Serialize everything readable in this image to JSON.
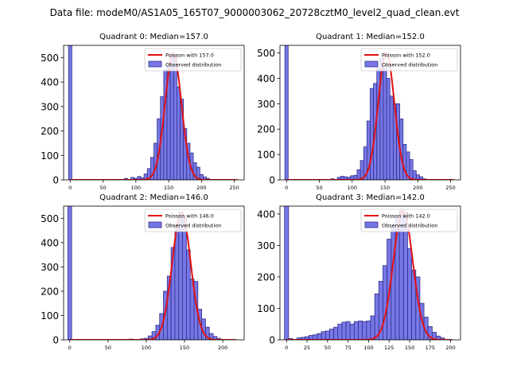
{
  "figure_title": "Data file: modeM0/AS1A05_165T07_9000003062_20728cztM0_level2_quad_clean.evt",
  "colors": {
    "bar_fill": "#7777e6",
    "bar_edge": "#2f2f8a",
    "fit_line": "#e41010",
    "axis": "#000000"
  },
  "chart_data": [
    {
      "type": "bar",
      "title": "Quadrant 0: Median=157.0",
      "legend": [
        "Poisson with 157.0",
        "Observed distribution"
      ],
      "legend_position": "top-right",
      "xlim": [
        -10,
        265
      ],
      "ylim": [
        0,
        550
      ],
      "xticks": [
        0,
        50,
        100,
        150,
        200,
        250
      ],
      "yticks": [
        0,
        100,
        200,
        300,
        400,
        500
      ],
      "bin_width": 5,
      "mean": 157.0,
      "fit_peak": 515,
      "bins": [
        {
          "x": 0,
          "count": 550
        },
        {
          "x": 85,
          "count": 6
        },
        {
          "x": 95,
          "count": 10
        },
        {
          "x": 100,
          "count": 6
        },
        {
          "x": 105,
          "count": 14
        },
        {
          "x": 110,
          "count": 8
        },
        {
          "x": 115,
          "count": 24
        },
        {
          "x": 120,
          "count": 46
        },
        {
          "x": 125,
          "count": 92
        },
        {
          "x": 130,
          "count": 150
        },
        {
          "x": 135,
          "count": 250
        },
        {
          "x": 140,
          "count": 340
        },
        {
          "x": 145,
          "count": 450
        },
        {
          "x": 150,
          "count": 470
        },
        {
          "x": 155,
          "count": 510
        },
        {
          "x": 160,
          "count": 500
        },
        {
          "x": 165,
          "count": 380
        },
        {
          "x": 170,
          "count": 330
        },
        {
          "x": 175,
          "count": 210
        },
        {
          "x": 180,
          "count": 150
        },
        {
          "x": 185,
          "count": 110
        },
        {
          "x": 190,
          "count": 70
        },
        {
          "x": 195,
          "count": 52
        },
        {
          "x": 200,
          "count": 22
        },
        {
          "x": 205,
          "count": 12
        },
        {
          "x": 210,
          "count": 5
        }
      ]
    },
    {
      "type": "bar",
      "title": "Quadrant 1: Median=152.0",
      "legend": [
        "Poisson with 152.0",
        "Observed distribution"
      ],
      "legend_position": "top-right",
      "xlim": [
        -10,
        265
      ],
      "ylim": [
        0,
        530
      ],
      "xticks": [
        0,
        50,
        100,
        150,
        200,
        250
      ],
      "yticks": [
        0,
        100,
        200,
        300,
        400,
        500
      ],
      "bin_width": 5,
      "mean": 152.0,
      "fit_peak": 500,
      "bins": [
        {
          "x": 0,
          "count": 530
        },
        {
          "x": 70,
          "count": 4
        },
        {
          "x": 80,
          "count": 10
        },
        {
          "x": 85,
          "count": 14
        },
        {
          "x": 90,
          "count": 12
        },
        {
          "x": 95,
          "count": 10
        },
        {
          "x": 100,
          "count": 16
        },
        {
          "x": 105,
          "count": 18
        },
        {
          "x": 110,
          "count": 40
        },
        {
          "x": 115,
          "count": 76
        },
        {
          "x": 120,
          "count": 130
        },
        {
          "x": 125,
          "count": 232
        },
        {
          "x": 130,
          "count": 360
        },
        {
          "x": 135,
          "count": 380
        },
        {
          "x": 140,
          "count": 440
        },
        {
          "x": 145,
          "count": 480
        },
        {
          "x": 150,
          "count": 450
        },
        {
          "x": 155,
          "count": 400
        },
        {
          "x": 160,
          "count": 330
        },
        {
          "x": 165,
          "count": 300
        },
        {
          "x": 170,
          "count": 300
        },
        {
          "x": 175,
          "count": 240
        },
        {
          "x": 180,
          "count": 140
        },
        {
          "x": 185,
          "count": 110
        },
        {
          "x": 190,
          "count": 80
        },
        {
          "x": 195,
          "count": 36
        },
        {
          "x": 200,
          "count": 20
        },
        {
          "x": 205,
          "count": 12
        },
        {
          "x": 210,
          "count": 4
        }
      ]
    },
    {
      "type": "bar",
      "title": "Quadrant 2: Median=146.0",
      "legend": [
        "Poisson with 146.0",
        "Observed distribution"
      ],
      "legend_position": "top-right",
      "xlim": [
        -8,
        228
      ],
      "ylim": [
        0,
        550
      ],
      "xticks": [
        0,
        50,
        100,
        150,
        200
      ],
      "yticks": [
        0,
        100,
        200,
        300,
        400,
        500
      ],
      "bin_width": 5,
      "mean": 146.0,
      "fit_peak": 525,
      "bins": [
        {
          "x": 0,
          "count": 550
        },
        {
          "x": 80,
          "count": 3
        },
        {
          "x": 95,
          "count": 4
        },
        {
          "x": 100,
          "count": 6
        },
        {
          "x": 105,
          "count": 16
        },
        {
          "x": 110,
          "count": 34
        },
        {
          "x": 115,
          "count": 60
        },
        {
          "x": 120,
          "count": 108
        },
        {
          "x": 125,
          "count": 200
        },
        {
          "x": 130,
          "count": 262
        },
        {
          "x": 135,
          "count": 380
        },
        {
          "x": 140,
          "count": 470
        },
        {
          "x": 145,
          "count": 525
        },
        {
          "x": 150,
          "count": 505
        },
        {
          "x": 155,
          "count": 370
        },
        {
          "x": 160,
          "count": 250
        },
        {
          "x": 165,
          "count": 240
        },
        {
          "x": 170,
          "count": 126
        },
        {
          "x": 175,
          "count": 86
        },
        {
          "x": 180,
          "count": 52
        },
        {
          "x": 185,
          "count": 26
        },
        {
          "x": 190,
          "count": 14
        },
        {
          "x": 195,
          "count": 6
        }
      ]
    },
    {
      "type": "bar",
      "title": "Quadrant 3: Median=142.0",
      "legend": [
        "Poisson with 142.0",
        "Observed distribution"
      ],
      "legend_position": "top-right",
      "xlim": [
        -8,
        212
      ],
      "ylim": [
        0,
        425
      ],
      "xticks": [
        0,
        25,
        50,
        75,
        100,
        125,
        150,
        175,
        200
      ],
      "yticks": [
        0,
        100,
        200,
        300,
        400
      ],
      "bin_width": 5,
      "mean": 142.0,
      "fit_peak": 410,
      "bins": [
        {
          "x": 0,
          "count": 425
        },
        {
          "x": 5,
          "count": 4
        },
        {
          "x": 15,
          "count": 6
        },
        {
          "x": 20,
          "count": 8
        },
        {
          "x": 25,
          "count": 10
        },
        {
          "x": 30,
          "count": 14
        },
        {
          "x": 35,
          "count": 16
        },
        {
          "x": 40,
          "count": 20
        },
        {
          "x": 45,
          "count": 26
        },
        {
          "x": 50,
          "count": 28
        },
        {
          "x": 55,
          "count": 34
        },
        {
          "x": 60,
          "count": 40
        },
        {
          "x": 65,
          "count": 50
        },
        {
          "x": 70,
          "count": 56
        },
        {
          "x": 75,
          "count": 58
        },
        {
          "x": 80,
          "count": 50
        },
        {
          "x": 85,
          "count": 58
        },
        {
          "x": 90,
          "count": 60
        },
        {
          "x": 95,
          "count": 58
        },
        {
          "x": 100,
          "count": 60
        },
        {
          "x": 105,
          "count": 76
        },
        {
          "x": 110,
          "count": 146
        },
        {
          "x": 115,
          "count": 186
        },
        {
          "x": 120,
          "count": 236
        },
        {
          "x": 125,
          "count": 320
        },
        {
          "x": 130,
          "count": 360
        },
        {
          "x": 135,
          "count": 390
        },
        {
          "x": 140,
          "count": 410
        },
        {
          "x": 145,
          "count": 405
        },
        {
          "x": 150,
          "count": 290
        },
        {
          "x": 155,
          "count": 222
        },
        {
          "x": 160,
          "count": 200
        },
        {
          "x": 165,
          "count": 116
        },
        {
          "x": 170,
          "count": 72
        },
        {
          "x": 175,
          "count": 42
        },
        {
          "x": 180,
          "count": 24
        },
        {
          "x": 185,
          "count": 12
        },
        {
          "x": 190,
          "count": 6
        }
      ]
    }
  ]
}
